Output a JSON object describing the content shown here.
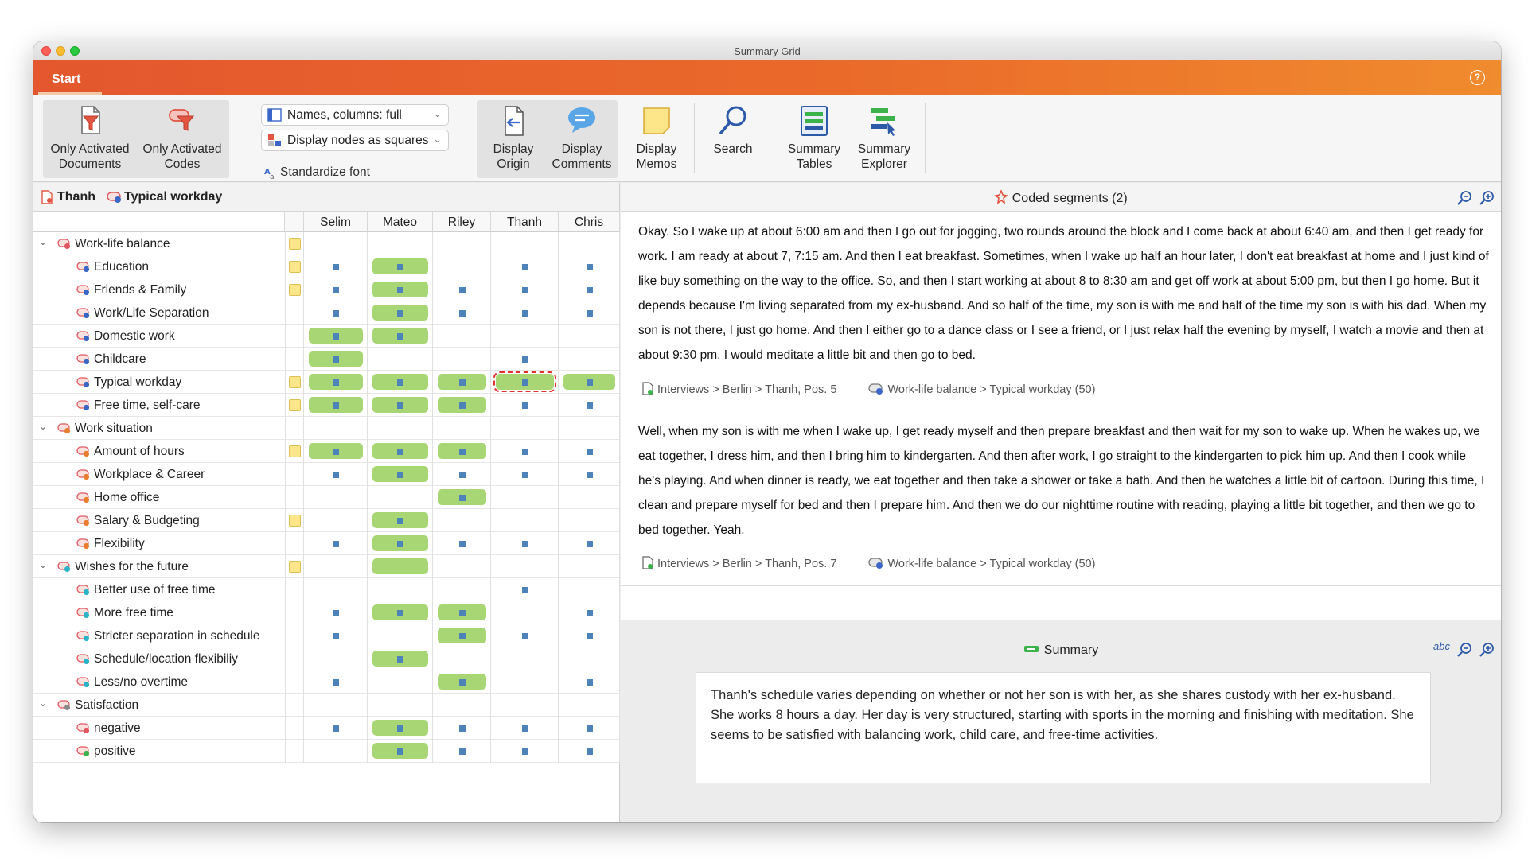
{
  "window": {
    "title": "Summary Grid"
  },
  "ribbon": {
    "tab_start": "Start",
    "help_glyph": "?"
  },
  "toolbar": {
    "only_activated_documents": [
      "Only Activated",
      "Documents"
    ],
    "only_activated_codes": [
      "Only Activated",
      "Codes"
    ],
    "names_columns": "Names, columns: full",
    "display_nodes": "Display nodes as squares",
    "standardize_font": "Standardize font",
    "display_origin": [
      "Display",
      "Origin"
    ],
    "display_comments": [
      "Display",
      "Comments"
    ],
    "display_memos": [
      "Display",
      "Memos"
    ],
    "search": "Search",
    "summary_tables": [
      "Summary",
      "Tables"
    ],
    "summary_explorer": [
      "Summary",
      "Explorer"
    ]
  },
  "left": {
    "breadcrumb_document": "Thanh",
    "breadcrumb_code": "Typical workday",
    "columns": [
      "Selim",
      "Mateo",
      "Riley",
      "Thanh",
      "Chris"
    ],
    "rows": [
      {
        "label": "Work-life balance",
        "level": 0,
        "color": "#e0575f",
        "memo": true,
        "cells": [
          "",
          "",
          "",
          "",
          ""
        ]
      },
      {
        "label": "Education",
        "level": 1,
        "color": "#3a66c8",
        "memo": true,
        "cells": [
          "s",
          "b",
          "",
          "s",
          "s"
        ]
      },
      {
        "label": "Friends & Family",
        "level": 1,
        "color": "#3a66c8",
        "memo": true,
        "cells": [
          "s",
          "b",
          "s",
          "s",
          "s"
        ]
      },
      {
        "label": "Work/Life Separation",
        "level": 1,
        "color": "#3a66c8",
        "memo": false,
        "cells": [
          "s",
          "b",
          "s",
          "s",
          "s"
        ]
      },
      {
        "label": "Domestic work",
        "level": 1,
        "color": "#3a66c8",
        "memo": false,
        "cells": [
          "b",
          "b",
          "",
          "",
          ""
        ]
      },
      {
        "label": "Childcare",
        "level": 1,
        "color": "#3a66c8",
        "memo": false,
        "cells": [
          "b",
          "",
          "",
          "s",
          ""
        ]
      },
      {
        "label": "Typical workday",
        "level": 1,
        "color": "#3a66c8",
        "memo": true,
        "cells": [
          "b",
          "b",
          "b",
          "sel",
          "b"
        ]
      },
      {
        "label": "Free time, self-care",
        "level": 1,
        "color": "#3a66c8",
        "memo": true,
        "cells": [
          "b",
          "b",
          "b",
          "s",
          "s"
        ]
      },
      {
        "label": "Work situation",
        "level": 0,
        "color": "#e87d2e",
        "memo": false,
        "cells": [
          "",
          "",
          "",
          "",
          ""
        ]
      },
      {
        "label": "Amount of hours",
        "level": 1,
        "color": "#e87d2e",
        "memo": true,
        "cells": [
          "b",
          "b",
          "b",
          "s",
          "s"
        ]
      },
      {
        "label": "Workplace & Career",
        "level": 1,
        "color": "#e87d2e",
        "memo": false,
        "cells": [
          "s",
          "b",
          "s",
          "s",
          "s"
        ]
      },
      {
        "label": "Home office",
        "level": 1,
        "color": "#e87d2e",
        "memo": false,
        "cells": [
          "",
          "",
          "b",
          "",
          ""
        ]
      },
      {
        "label": "Salary & Budgeting",
        "level": 1,
        "color": "#e87d2e",
        "memo": true,
        "cells": [
          "",
          "b",
          "",
          "",
          ""
        ]
      },
      {
        "label": "Flexibility",
        "level": 1,
        "color": "#e87d2e",
        "memo": false,
        "cells": [
          "s",
          "b",
          "s",
          "s",
          "s"
        ]
      },
      {
        "label": "Wishes for the future",
        "level": 0,
        "color": "#2bb3c8",
        "memo": true,
        "cells": [
          "",
          "bar",
          "",
          "",
          ""
        ]
      },
      {
        "label": "Better use of free time",
        "level": 1,
        "color": "#2bb3c8",
        "memo": false,
        "cells": [
          "",
          "",
          "",
          "s",
          ""
        ]
      },
      {
        "label": "More free time",
        "level": 1,
        "color": "#2bb3c8",
        "memo": false,
        "cells": [
          "s",
          "b",
          "b",
          "",
          "s"
        ]
      },
      {
        "label": "Stricter separation in schedule",
        "level": 1,
        "color": "#2bb3c8",
        "memo": false,
        "cells": [
          "s",
          "",
          "b",
          "s",
          "s"
        ]
      },
      {
        "label": "Schedule/location flexibiliy",
        "level": 1,
        "color": "#2bb3c8",
        "memo": false,
        "cells": [
          "",
          "b",
          "",
          "",
          ""
        ]
      },
      {
        "label": "Less/no overtime",
        "level": 1,
        "color": "#2bb3c8",
        "memo": false,
        "cells": [
          "s",
          "",
          "b",
          "",
          "s"
        ]
      },
      {
        "label": "Satisfaction",
        "level": 0,
        "color": "#8a8a8a",
        "memo": false,
        "cells": [
          "",
          "",
          "",
          "",
          ""
        ]
      },
      {
        "label": "negative",
        "level": 1,
        "color": "#e0575f",
        "memo": false,
        "cells": [
          "s",
          "b",
          "s",
          "s",
          "s"
        ]
      },
      {
        "label": "positive",
        "level": 1,
        "color": "#3cb34a",
        "memo": false,
        "cells": [
          "",
          "b",
          "s",
          "s",
          "s"
        ]
      }
    ]
  },
  "segments": {
    "title": "Coded segments (2)",
    "items": [
      {
        "text": "Okay. So I wake up at about 6:00 am and then I go out for jogging, two rounds around the block and I come back at about 6:40 am, and then I get ready for work. I am ready at about 7, 7:15 am. And then I eat breakfast. Sometimes, when I wake up half an hour later, I don't eat breakfast at home and I just kind of like buy something on the way to the office. So, and then I start working at about 8 to 8:30 am and get off work at about 5:00 pm, but then I go home. But it depends because I'm living separated from my ex-husband. And so half of the time, my son is with me and half of the time my son is with his dad. When my son is not there, I just go home. And then I either go to a dance class or I see a friend, or I just relax half the evening by myself, I watch a movie and then at about 9:30 pm, I would meditate a little bit and then go to bed.",
        "origin": "Interviews > Berlin > Thanh, Pos. 5",
        "code": "Work-life balance > Typical workday (50)"
      },
      {
        "text": "Well, when my son is with me when I wake up, I get ready myself and then prepare breakfast and then wait for my son to wake up. When he wakes up, we eat together, I dress him, and then I bring him to kindergarten.  And then after work, I go straight to the kindergarten to pick him up.  And then I cook while he's playing. And when dinner is ready, we eat together and then take a shower or take a bath. And then he watches a little bit of cartoon. During this time, I clean and prepare myself for bed and then I prepare him. And then we do our nighttime routine with reading, playing a little bit together, and then we go to bed together. Yeah.",
        "origin": "Interviews > Berlin > Thanh, Pos. 7",
        "code": "Work-life balance > Typical workday (50)"
      }
    ]
  },
  "summary": {
    "title": "Summary",
    "spell_glyph": "abc",
    "text": "Thanh's schedule varies depending on whether or not her son is with her, as she shares custody with her ex-husband. She works 8 hours a day. Her day is very structured, starting with sports in the morning and finishing with meditation. She seems to be satisfied with balancing work, child care, and free-time activities."
  },
  "icons": {
    "doc_filter": "document-filter-icon",
    "code_filter": "code-filter-icon",
    "origin": "display-origin-icon",
    "comments": "speech-bubble-icon",
    "memos": "memo-icon",
    "search": "magnifier-icon",
    "tables": "summary-tables-icon",
    "explorer": "summary-explorer-icon"
  },
  "colors": {
    "accent_start": "#e4572e",
    "accent_end": "#f08b2e",
    "bar": "#a8d675",
    "square": "#4d83b8",
    "memo": "#fde68a"
  }
}
